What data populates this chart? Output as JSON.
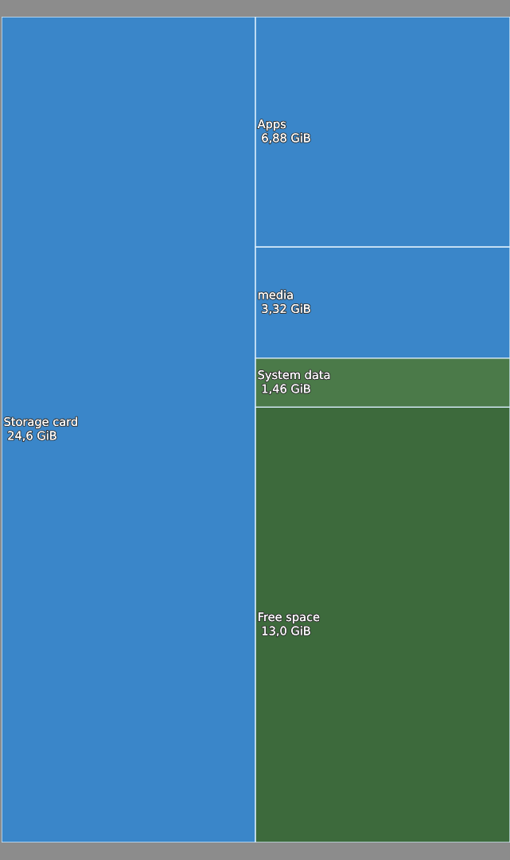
{
  "chart_data": {
    "type": "other",
    "categories": [
      "Storage card",
      "Apps",
      "media",
      "System data",
      "Free space"
    ],
    "values": [
      24.6,
      6.88,
      3.32,
      1.46,
      13.0
    ],
    "value_labels": [
      "24,6 GiB",
      "6,88 GiB",
      "3,32 GiB",
      "1,46 GiB",
      "13,0 GiB"
    ],
    "colors": [
      "#3a86c9",
      "#3a86c9",
      "#3a86c9",
      "#4b7a49",
      "#3d6a3c"
    ]
  }
}
